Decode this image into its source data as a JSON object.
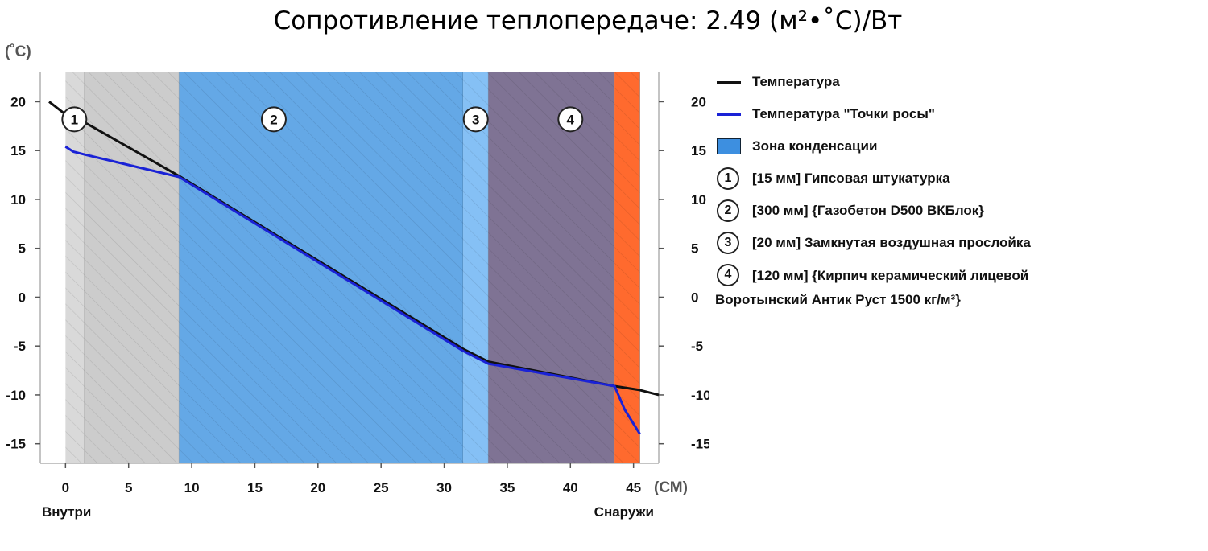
{
  "title": "Сопротивление теплопередаче: 2.49 (м²•˚C)/Вт",
  "chart_data": {
    "type": "line",
    "xlim": [
      -2,
      47
    ],
    "ylim": [
      -17,
      23
    ],
    "x_unit": "(СМ)",
    "y_unit": "(˚C)",
    "x_ticks": [
      0,
      5,
      10,
      15,
      20,
      25,
      30,
      35,
      40,
      45
    ],
    "y_ticks": [
      20,
      15,
      10,
      5,
      0,
      -5,
      -10,
      -15
    ],
    "inside_label": "Внутри",
    "outside_label": "Снаружи",
    "grid": false,
    "legend_placement": "right",
    "layers": [
      {
        "num": "1",
        "x_start": 0,
        "x_end": 1.5,
        "color": "#d9d9d9",
        "label": "[15 мм] Гипсовая штукатурка"
      },
      {
        "num": "",
        "x_start": 1.5,
        "x_end": 9,
        "color": "#cccccc",
        "label": ""
      },
      {
        "num": "2",
        "x_start": 9,
        "x_end": 31.5,
        "color": "#64a8e6",
        "label": "[300 мм] {Газобетон D500 ВКБлок}"
      },
      {
        "num": "3",
        "x_start": 31.5,
        "x_end": 33.5,
        "color": "#85c0f5",
        "label": "[20 мм] Замкнутая воздушная прослойка"
      },
      {
        "num": "4",
        "x_start": 33.5,
        "x_end": 43.5,
        "color": "#7f7394",
        "label": "[120 мм] {Кирпич керамический лицевой Воротынский Антик Руст 1500 кг/м³}"
      },
      {
        "num": "",
        "x_start": 43.5,
        "x_end": 45.5,
        "color": "#ff6a2e",
        "label": ""
      }
    ],
    "number_badges": [
      {
        "num": "1",
        "x": 0.7,
        "y": 18.2
      },
      {
        "num": "2",
        "x": 16.5,
        "y": 18.2
      },
      {
        "num": "3",
        "x": 32.5,
        "y": 18.2
      },
      {
        "num": "4",
        "x": 40.0,
        "y": 18.2
      }
    ],
    "series": [
      {
        "name": "Температура",
        "color": "#111111",
        "x": [
          -1.3,
          0,
          1.5,
          9,
          31.5,
          33.5,
          43.5,
          45.5,
          47
        ],
        "y": [
          20,
          18.7,
          17.9,
          12.4,
          -5.3,
          -6.6,
          -9.1,
          -9.5,
          -10
        ]
      },
      {
        "name": "Температура \"Точки росы\"",
        "color": "#1a22d6",
        "x": [
          0,
          0.6,
          1.5,
          9,
          31.5,
          33.5,
          43.5,
          44.3,
          45.5
        ],
        "y": [
          15.4,
          14.9,
          14.6,
          12.3,
          -5.5,
          -6.8,
          -9.1,
          -11.5,
          -14
        ]
      }
    ],
    "condensation_zone": {
      "label": "Зона конденсации",
      "color": "#3d8fe0"
    }
  }
}
